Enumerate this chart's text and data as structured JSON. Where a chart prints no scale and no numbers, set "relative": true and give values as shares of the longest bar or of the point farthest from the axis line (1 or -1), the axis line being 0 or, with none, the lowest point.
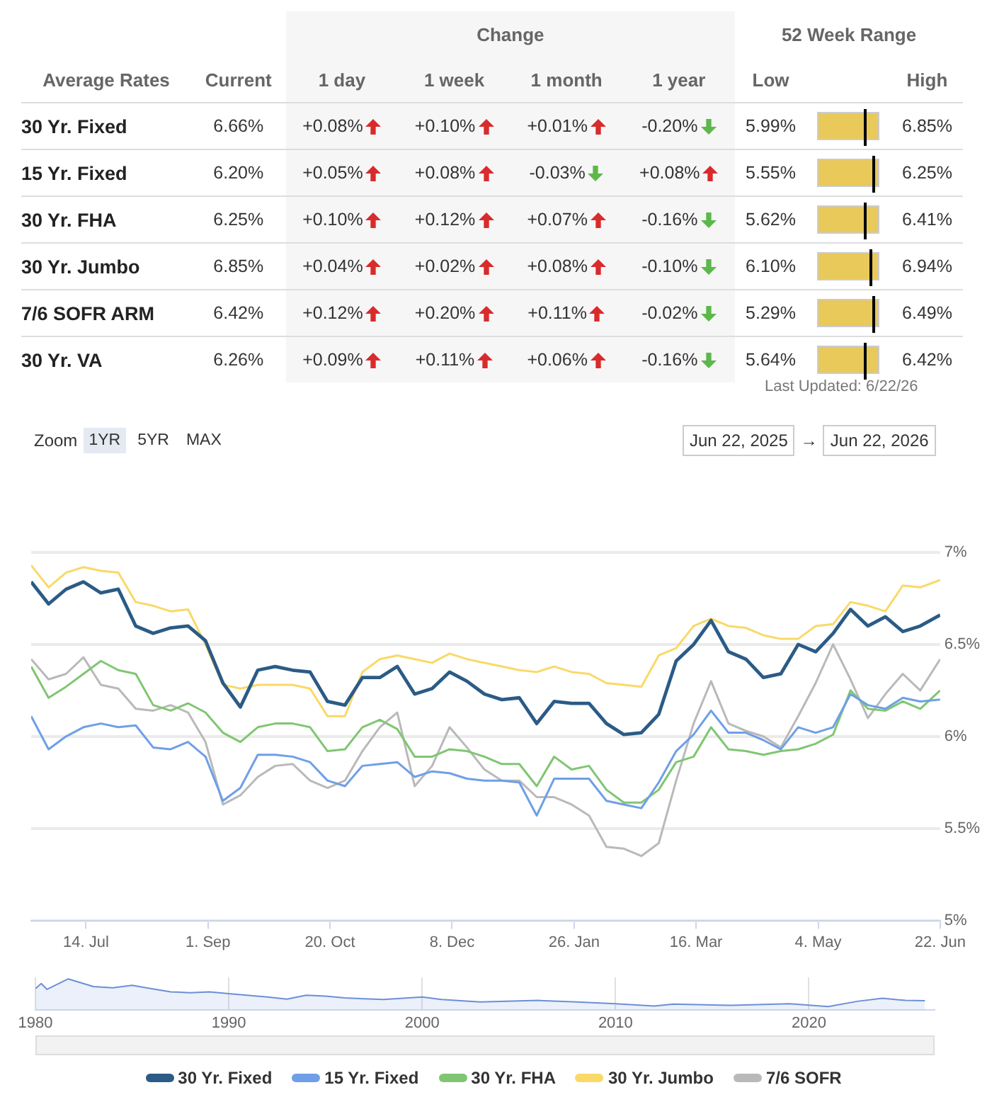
{
  "chart_data": [
    {
      "type": "other",
      "ylabel": "Average Rates",
      "categories": [
        "30 Yr. Fixed",
        "15 Yr. Fixed",
        "30 Yr. FHA",
        "30 Yr. Jumbo",
        "7/6 SOFR ARM",
        "30 Yr. VA"
      ],
      "series": [
        {
          "name": "Current",
          "values": [
            6.66,
            6.2,
            6.25,
            6.85,
            6.42,
            6.26
          ],
          "value_labels": [
            "6.66%",
            "6.20%",
            "6.25%",
            "6.85%",
            "6.42%",
            "6.26%"
          ]
        },
        {
          "name": "1 day",
          "values": [
            0.08,
            0.05,
            0.1,
            0.04,
            0.12,
            0.09
          ],
          "value_labels": [
            "+0.08%",
            "+0.05%",
            "+0.10%",
            "+0.04%",
            "+0.12%",
            "+0.09%"
          ]
        },
        {
          "name": "1 week",
          "values": [
            0.1,
            0.08,
            0.12,
            0.02,
            0.2,
            0.11
          ],
          "value_labels": [
            "+0.10%",
            "+0.08%",
            "+0.12%",
            "+0.02%",
            "+0.20%",
            "+0.11%"
          ]
        },
        {
          "name": "1 month",
          "values": [
            0.01,
            -0.03,
            0.07,
            0.08,
            0.11,
            0.06
          ],
          "value_labels": [
            "+0.01%",
            "-0.03%",
            "+0.07%",
            "+0.08%",
            "+0.11%",
            "+0.06%"
          ]
        },
        {
          "name": "1 year",
          "values": [
            -0.2,
            0.08,
            -0.16,
            -0.1,
            -0.02,
            -0.16
          ],
          "value_labels": [
            "-0.20%",
            "+0.08%",
            "-0.16%",
            "-0.10%",
            "-0.02%",
            "-0.16%"
          ]
        },
        {
          "name": "Low",
          "values": [
            5.99,
            5.55,
            5.62,
            6.1,
            5.29,
            5.64
          ],
          "value_labels": [
            "5.99%",
            "5.55%",
            "5.62%",
            "6.10%",
            "5.29%",
            "5.64%"
          ]
        },
        {
          "name": "High",
          "values": [
            6.85,
            6.25,
            6.41,
            6.94,
            6.49,
            6.42
          ],
          "value_labels": [
            "6.85%",
            "6.25%",
            "6.41%",
            "6.94%",
            "6.49%",
            "6.42%"
          ]
        }
      ],
      "annotations": [
        "Change",
        "52 Week Range",
        "Last Updated: 6/22/26"
      ]
    },
    {
      "type": "line",
      "x": [
        "2025-06-22",
        "2025-06-29",
        "2025-07-06",
        "2025-07-13",
        "2025-07-20",
        "2025-07-27",
        "2025-08-03",
        "2025-08-10",
        "2025-08-17",
        "2025-08-24",
        "2025-08-31",
        "2025-09-07",
        "2025-09-14",
        "2025-09-21",
        "2025-09-28",
        "2025-10-05",
        "2025-10-12",
        "2025-10-19",
        "2025-10-26",
        "2025-11-02",
        "2025-11-09",
        "2025-11-16",
        "2025-11-23",
        "2025-11-30",
        "2025-12-07",
        "2025-12-14",
        "2025-12-21",
        "2025-12-28",
        "2026-01-04",
        "2026-01-11",
        "2026-01-18",
        "2026-01-25",
        "2026-02-01",
        "2026-02-08",
        "2026-02-15",
        "2026-02-22",
        "2026-03-01",
        "2026-03-08",
        "2026-03-15",
        "2026-03-22",
        "2026-03-29",
        "2026-04-05",
        "2026-04-12",
        "2026-04-19",
        "2026-04-26",
        "2026-05-03",
        "2026-05-10",
        "2026-05-17",
        "2026-05-24",
        "2026-05-31",
        "2026-06-07",
        "2026-06-14",
        "2026-06-22"
      ],
      "series": [
        {
          "name": "30 Yr. Fixed",
          "color": "#2b5b86",
          "values": [
            6.84,
            6.72,
            6.8,
            6.84,
            6.78,
            6.8,
            6.6,
            6.56,
            6.59,
            6.6,
            6.52,
            6.29,
            6.16,
            6.36,
            6.38,
            6.36,
            6.35,
            6.19,
            6.17,
            6.32,
            6.32,
            6.38,
            6.23,
            6.26,
            6.35,
            6.3,
            6.23,
            6.2,
            6.21,
            6.07,
            6.19,
            6.18,
            6.18,
            6.07,
            6.01,
            6.02,
            6.12,
            6.41,
            6.5,
            6.63,
            6.46,
            6.42,
            6.32,
            6.34,
            6.5,
            6.46,
            6.56,
            6.69,
            6.6,
            6.65,
            6.57,
            6.6,
            6.66
          ]
        },
        {
          "name": "15 Yr. Fixed",
          "color": "#6f9fe6",
          "values": [
            6.11,
            5.93,
            6.0,
            6.05,
            6.07,
            6.05,
            6.06,
            5.94,
            5.93,
            5.97,
            5.89,
            5.65,
            5.72,
            5.9,
            5.9,
            5.89,
            5.86,
            5.76,
            5.73,
            5.84,
            5.85,
            5.86,
            5.78,
            5.81,
            5.8,
            5.77,
            5.76,
            5.76,
            5.75,
            5.57,
            5.77,
            5.77,
            5.77,
            5.65,
            5.63,
            5.61,
            5.75,
            5.92,
            6.01,
            6.14,
            6.02,
            6.02,
            5.98,
            5.93,
            6.05,
            6.02,
            6.05,
            6.23,
            6.17,
            6.15,
            6.21,
            6.19,
            6.2
          ]
        },
        {
          "name": "30 Yr. FHA",
          "color": "#80c672",
          "values": [
            6.38,
            6.21,
            6.27,
            6.34,
            6.41,
            6.36,
            6.34,
            6.17,
            6.14,
            6.18,
            6.13,
            6.02,
            5.97,
            6.05,
            6.07,
            6.07,
            6.05,
            5.92,
            5.93,
            6.05,
            6.09,
            6.04,
            5.89,
            5.89,
            5.93,
            5.92,
            5.89,
            5.85,
            5.85,
            5.73,
            5.89,
            5.82,
            5.84,
            5.71,
            5.64,
            5.64,
            5.71,
            5.86,
            5.89,
            6.05,
            5.93,
            5.92,
            5.9,
            5.92,
            5.93,
            5.96,
            6.01,
            6.25,
            6.15,
            6.14,
            6.19,
            6.15,
            6.25
          ]
        },
        {
          "name": "30 Yr. Jumbo",
          "color": "#f9d967",
          "values": [
            6.93,
            6.81,
            6.89,
            6.92,
            6.9,
            6.89,
            6.73,
            6.71,
            6.68,
            6.69,
            6.5,
            6.28,
            6.26,
            6.28,
            6.28,
            6.28,
            6.26,
            6.11,
            6.11,
            6.35,
            6.42,
            6.44,
            6.42,
            6.4,
            6.45,
            6.42,
            6.4,
            6.38,
            6.36,
            6.35,
            6.38,
            6.35,
            6.34,
            6.29,
            6.28,
            6.27,
            6.44,
            6.48,
            6.6,
            6.64,
            6.6,
            6.59,
            6.55,
            6.53,
            6.53,
            6.6,
            6.61,
            6.73,
            6.71,
            6.68,
            6.82,
            6.81,
            6.85
          ]
        },
        {
          "name": "7/6 SOFR",
          "color": "#b9b9b9",
          "values": [
            6.42,
            6.31,
            6.34,
            6.43,
            6.28,
            6.26,
            6.15,
            6.14,
            6.17,
            6.13,
            5.97,
            5.63,
            5.68,
            5.78,
            5.84,
            5.85,
            5.76,
            5.72,
            5.76,
            5.92,
            6.05,
            6.13,
            5.73,
            5.84,
            6.05,
            5.94,
            5.82,
            5.76,
            5.76,
            5.67,
            5.67,
            5.63,
            5.57,
            5.4,
            5.39,
            5.35,
            5.42,
            5.76,
            6.07,
            6.3,
            6.07,
            6.03,
            6.0,
            5.94,
            6.11,
            6.29,
            6.5,
            6.31,
            6.1,
            6.23,
            6.34,
            6.25,
            6.42
          ]
        }
      ],
      "xlim": [
        "2025-06-22",
        "2026-06-22"
      ],
      "xticks": [
        {
          "value": "2025-07-14",
          "label": "14. Jul"
        },
        {
          "value": "2025-09-01",
          "label": "1. Sep"
        },
        {
          "value": "2025-10-20",
          "label": "20. Oct"
        },
        {
          "value": "2025-12-08",
          "label": "8. Dec"
        },
        {
          "value": "2026-01-26",
          "label": "26. Jan"
        },
        {
          "value": "2026-03-16",
          "label": "16. Mar"
        },
        {
          "value": "2026-05-04",
          "label": "4. May"
        },
        {
          "value": "2026-06-22",
          "label": "22. Jun"
        }
      ],
      "ylim": [
        5,
        7
      ],
      "yticks": [
        {
          "value": 5,
          "label": "5%"
        },
        {
          "value": 5.5,
          "label": "5.5%"
        },
        {
          "value": 6,
          "label": "6%"
        },
        {
          "value": 6.5,
          "label": "6.5%"
        },
        {
          "value": 7,
          "label": "7%"
        }
      ],
      "grid": "y",
      "legend": "bottom",
      "marker": "none",
      "annotations": [
        "Zoom",
        "1YR",
        "5YR",
        "MAX",
        "Jun 22, 2025",
        "→",
        "Jun 22, 2026"
      ]
    },
    {
      "type": "area",
      "x": [
        1980,
        1980.3,
        1980.6,
        1981.7,
        1983,
        1984,
        1985,
        1986,
        1987,
        1988,
        1989,
        1990,
        1992,
        1993,
        1994,
        1995,
        1996,
        1998,
        2000,
        2001,
        2003,
        2006,
        2008,
        2010,
        2012,
        2013,
        2016,
        2019,
        2021,
        2022.5,
        2023.8,
        2025,
        2026
      ],
      "series": [
        {
          "color": "#6c8fd6",
          "values": [
            0.68,
            0.85,
            0.66,
            1,
            0.75,
            0.71,
            0.79,
            0.68,
            0.58,
            0.55,
            0.58,
            0.52,
            0.41,
            0.34,
            0.47,
            0.44,
            0.38,
            0.33,
            0.41,
            0.33,
            0.25,
            0.3,
            0.25,
            0.19,
            0.12,
            0.18,
            0.14,
            0.19,
            0.1,
            0.27,
            0.37,
            0.3,
            0.29
          ]
        }
      ],
      "relative": true,
      "xlim": [
        1980,
        2026.5
      ],
      "xticks": [
        1980,
        1990,
        2000,
        2010,
        2020
      ],
      "tick_labels": "x",
      "grid": "x"
    }
  ]
}
